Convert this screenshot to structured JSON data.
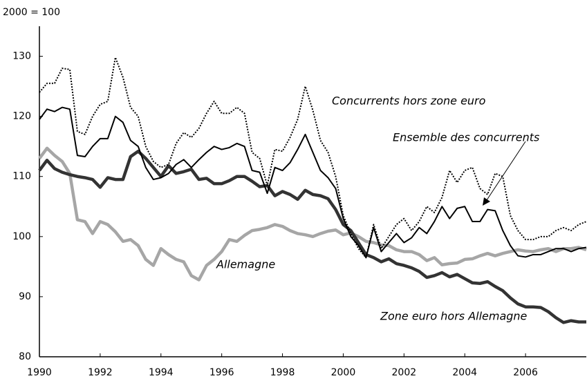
{
  "chart_data": {
    "type": "line",
    "y_unit_label": "2000 = 100",
    "x": [
      1990,
      1990.25,
      1990.5,
      1990.75,
      1991,
      1991.25,
      1991.5,
      1991.75,
      1992,
      1992.25,
      1992.5,
      1992.75,
      1993,
      1993.25,
      1993.5,
      1993.75,
      1994,
      1994.25,
      1994.5,
      1994.75,
      1995,
      1995.25,
      1995.5,
      1995.75,
      1996,
      1996.25,
      1996.5,
      1996.75,
      1997,
      1997.25,
      1997.5,
      1997.75,
      1998,
      1998.25,
      1998.5,
      1998.75,
      1999,
      1999.25,
      1999.5,
      1999.75,
      2000,
      2000.25,
      2000.5,
      2000.75,
      2001,
      2001.25,
      2001.5,
      2001.75,
      2002,
      2002.25,
      2002.5,
      2002.75,
      2003,
      2003.25,
      2003.5,
      2003.75,
      2004,
      2004.25,
      2004.5,
      2004.75,
      2005,
      2005.25,
      2005.5,
      2005.75,
      2006,
      2006.25,
      2006.5,
      2006.75,
      2007,
      2007.25,
      2007.5,
      2007.75,
      2008
    ],
    "series": [
      {
        "name": "Concurrents hors zone euro",
        "color": "#000000",
        "style": "dotted",
        "values": [
          124,
          125.5,
          125.5,
          128,
          127.8,
          117.5,
          117,
          120,
          122,
          122.5,
          129.8,
          126.5,
          121.5,
          120,
          115,
          112.5,
          111.5,
          112,
          115.5,
          117.3,
          116.5,
          118,
          120.5,
          122.5,
          120.5,
          120.5,
          121.5,
          120.5,
          114,
          113,
          108.5,
          114.5,
          114.2,
          116.5,
          119.5,
          125,
          121,
          116,
          114,
          110,
          103.5,
          100.5,
          98,
          96.5,
          102,
          98,
          100,
          102,
          103,
          101,
          102.5,
          105,
          104,
          106.5,
          111,
          109,
          111,
          111.5,
          108,
          107,
          110.5,
          110,
          103.5,
          101,
          99.5,
          99.5,
          100,
          100,
          101,
          101.5,
          101,
          102,
          102.5
        ]
      },
      {
        "name": "Ensemble des concurrents",
        "color": "#000000",
        "style": "solid",
        "values": [
          119.5,
          121.2,
          120.8,
          121.5,
          121.2,
          113.5,
          113.3,
          115,
          116.3,
          116.3,
          120,
          119,
          116,
          115,
          111.5,
          109.5,
          109.8,
          110.5,
          112,
          112.8,
          111.5,
          112.8,
          114,
          115,
          114.5,
          114.8,
          115.5,
          115,
          111,
          110.7,
          107.2,
          111.5,
          111,
          112.3,
          114.5,
          117,
          114,
          111,
          109.8,
          108,
          103,
          100,
          98.5,
          96.5,
          101.5,
          97.5,
          99,
          100.5,
          99,
          99.8,
          101.5,
          100.5,
          102.5,
          105,
          103,
          104.7,
          105,
          102.5,
          102.5,
          104.5,
          104.3,
          101,
          98.5,
          96.8,
          96.6,
          97,
          97,
          97.5,
          98,
          98,
          97.5,
          98,
          98.2
        ]
      },
      {
        "name": "Allemagne",
        "color": "#a6a6a6",
        "style": "thick",
        "values": [
          113,
          114.7,
          113.5,
          112.5,
          110.5,
          102.8,
          102.5,
          100.5,
          102.5,
          102,
          100.8,
          99.2,
          99.5,
          98.5,
          96.2,
          95.2,
          98,
          97,
          96.2,
          95.8,
          93.5,
          92.8,
          95.2,
          96.2,
          97.5,
          99.5,
          99.2,
          100.2,
          101,
          101.2,
          101.5,
          102,
          101.7,
          101,
          100.5,
          100.3,
          100,
          100.5,
          100.9,
          101.1,
          100.3,
          100.6,
          100,
          99.2,
          99,
          98.6,
          98.5,
          97.8,
          97.5,
          97.5,
          97,
          96,
          96.5,
          95.3,
          95.5,
          95.6,
          96.2,
          96.3,
          96.8,
          97.2,
          96.8,
          97.2,
          97.5,
          97.8,
          97.6,
          97.5,
          97.8,
          98,
          97.5,
          98,
          98,
          98.2,
          97.8
        ]
      },
      {
        "name": "Zone euro hors Allemagne",
        "color": "#333333",
        "style": "thick",
        "values": [
          111,
          112.7,
          111.3,
          110.7,
          110.3,
          110,
          109.8,
          109.5,
          108.2,
          109.8,
          109.5,
          109.5,
          113.3,
          114.2,
          113,
          111.5,
          110,
          111.8,
          110.5,
          110.8,
          111.2,
          109.5,
          109.7,
          108.8,
          108.8,
          109.3,
          110,
          110,
          109.2,
          108.3,
          108.5,
          106.8,
          107.5,
          107,
          106.2,
          107.7,
          107,
          106.8,
          106.3,
          104.5,
          102,
          101,
          99,
          97,
          96.5,
          95.8,
          96.3,
          95.5,
          95.2,
          94.8,
          94.2,
          93.2,
          93.5,
          94,
          93.3,
          93.7,
          93,
          92.3,
          92.2,
          92.5,
          91.7,
          91,
          89.8,
          88.8,
          88.3,
          88.3,
          88.2,
          87.5,
          86.5,
          85.7,
          86,
          85.8,
          85.8
        ]
      }
    ],
    "xlim": [
      1990,
      2008
    ],
    "xticks": [
      1990,
      1992,
      1994,
      1996,
      1998,
      2000,
      2002,
      2004,
      2006
    ],
    "ylim": [
      80,
      135
    ],
    "yticks": [
      80,
      90,
      100,
      110,
      120,
      130
    ]
  }
}
